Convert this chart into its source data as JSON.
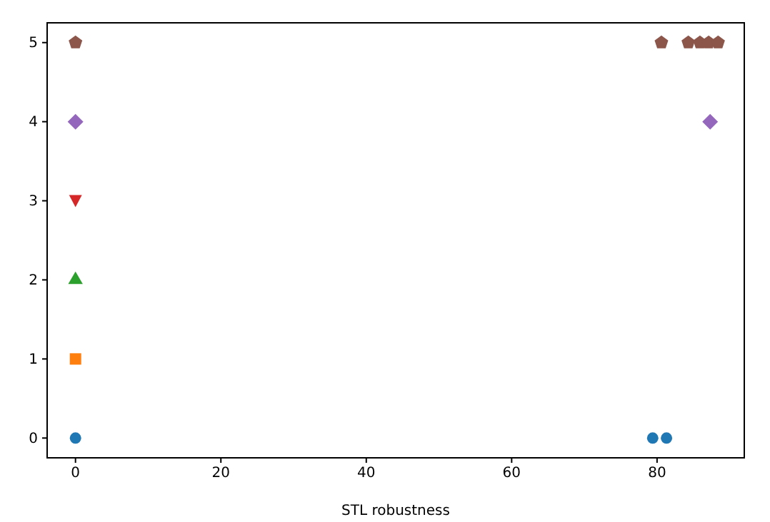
{
  "chart_data": {
    "type": "scatter",
    "xlabel": "STL robustness",
    "xlim": [
      -3.9,
      92
    ],
    "ylim": [
      -0.25,
      5.25
    ],
    "xticks": [
      0,
      20,
      40,
      60,
      80
    ],
    "yticks": [
      0,
      1,
      2,
      3,
      4,
      5
    ],
    "grid": false,
    "series": [
      {
        "color": "#1f77b4",
        "marker": "circle",
        "x": [
          0,
          79.4,
          81.3
        ],
        "values": [
          0,
          0,
          0
        ]
      },
      {
        "color": "#ff7f0e",
        "marker": "square",
        "x": [
          0
        ],
        "values": [
          1
        ]
      },
      {
        "color": "#2ca02c",
        "marker": "triangle",
        "x": [
          0
        ],
        "values": [
          2
        ]
      },
      {
        "color": "#d62728",
        "marker": "triangle-down",
        "x": [
          0
        ],
        "values": [
          3
        ]
      },
      {
        "color": "#9467bd",
        "marker": "diamond",
        "x": [
          0,
          87.3
        ],
        "values": [
          4,
          4
        ]
      },
      {
        "color": "#8c564b",
        "x": [
          0,
          80.6,
          84.3,
          85.9,
          87.1,
          88.4
        ],
        "values": [
          5,
          5,
          5,
          5,
          5,
          5
        ]
      }
    ]
  }
}
